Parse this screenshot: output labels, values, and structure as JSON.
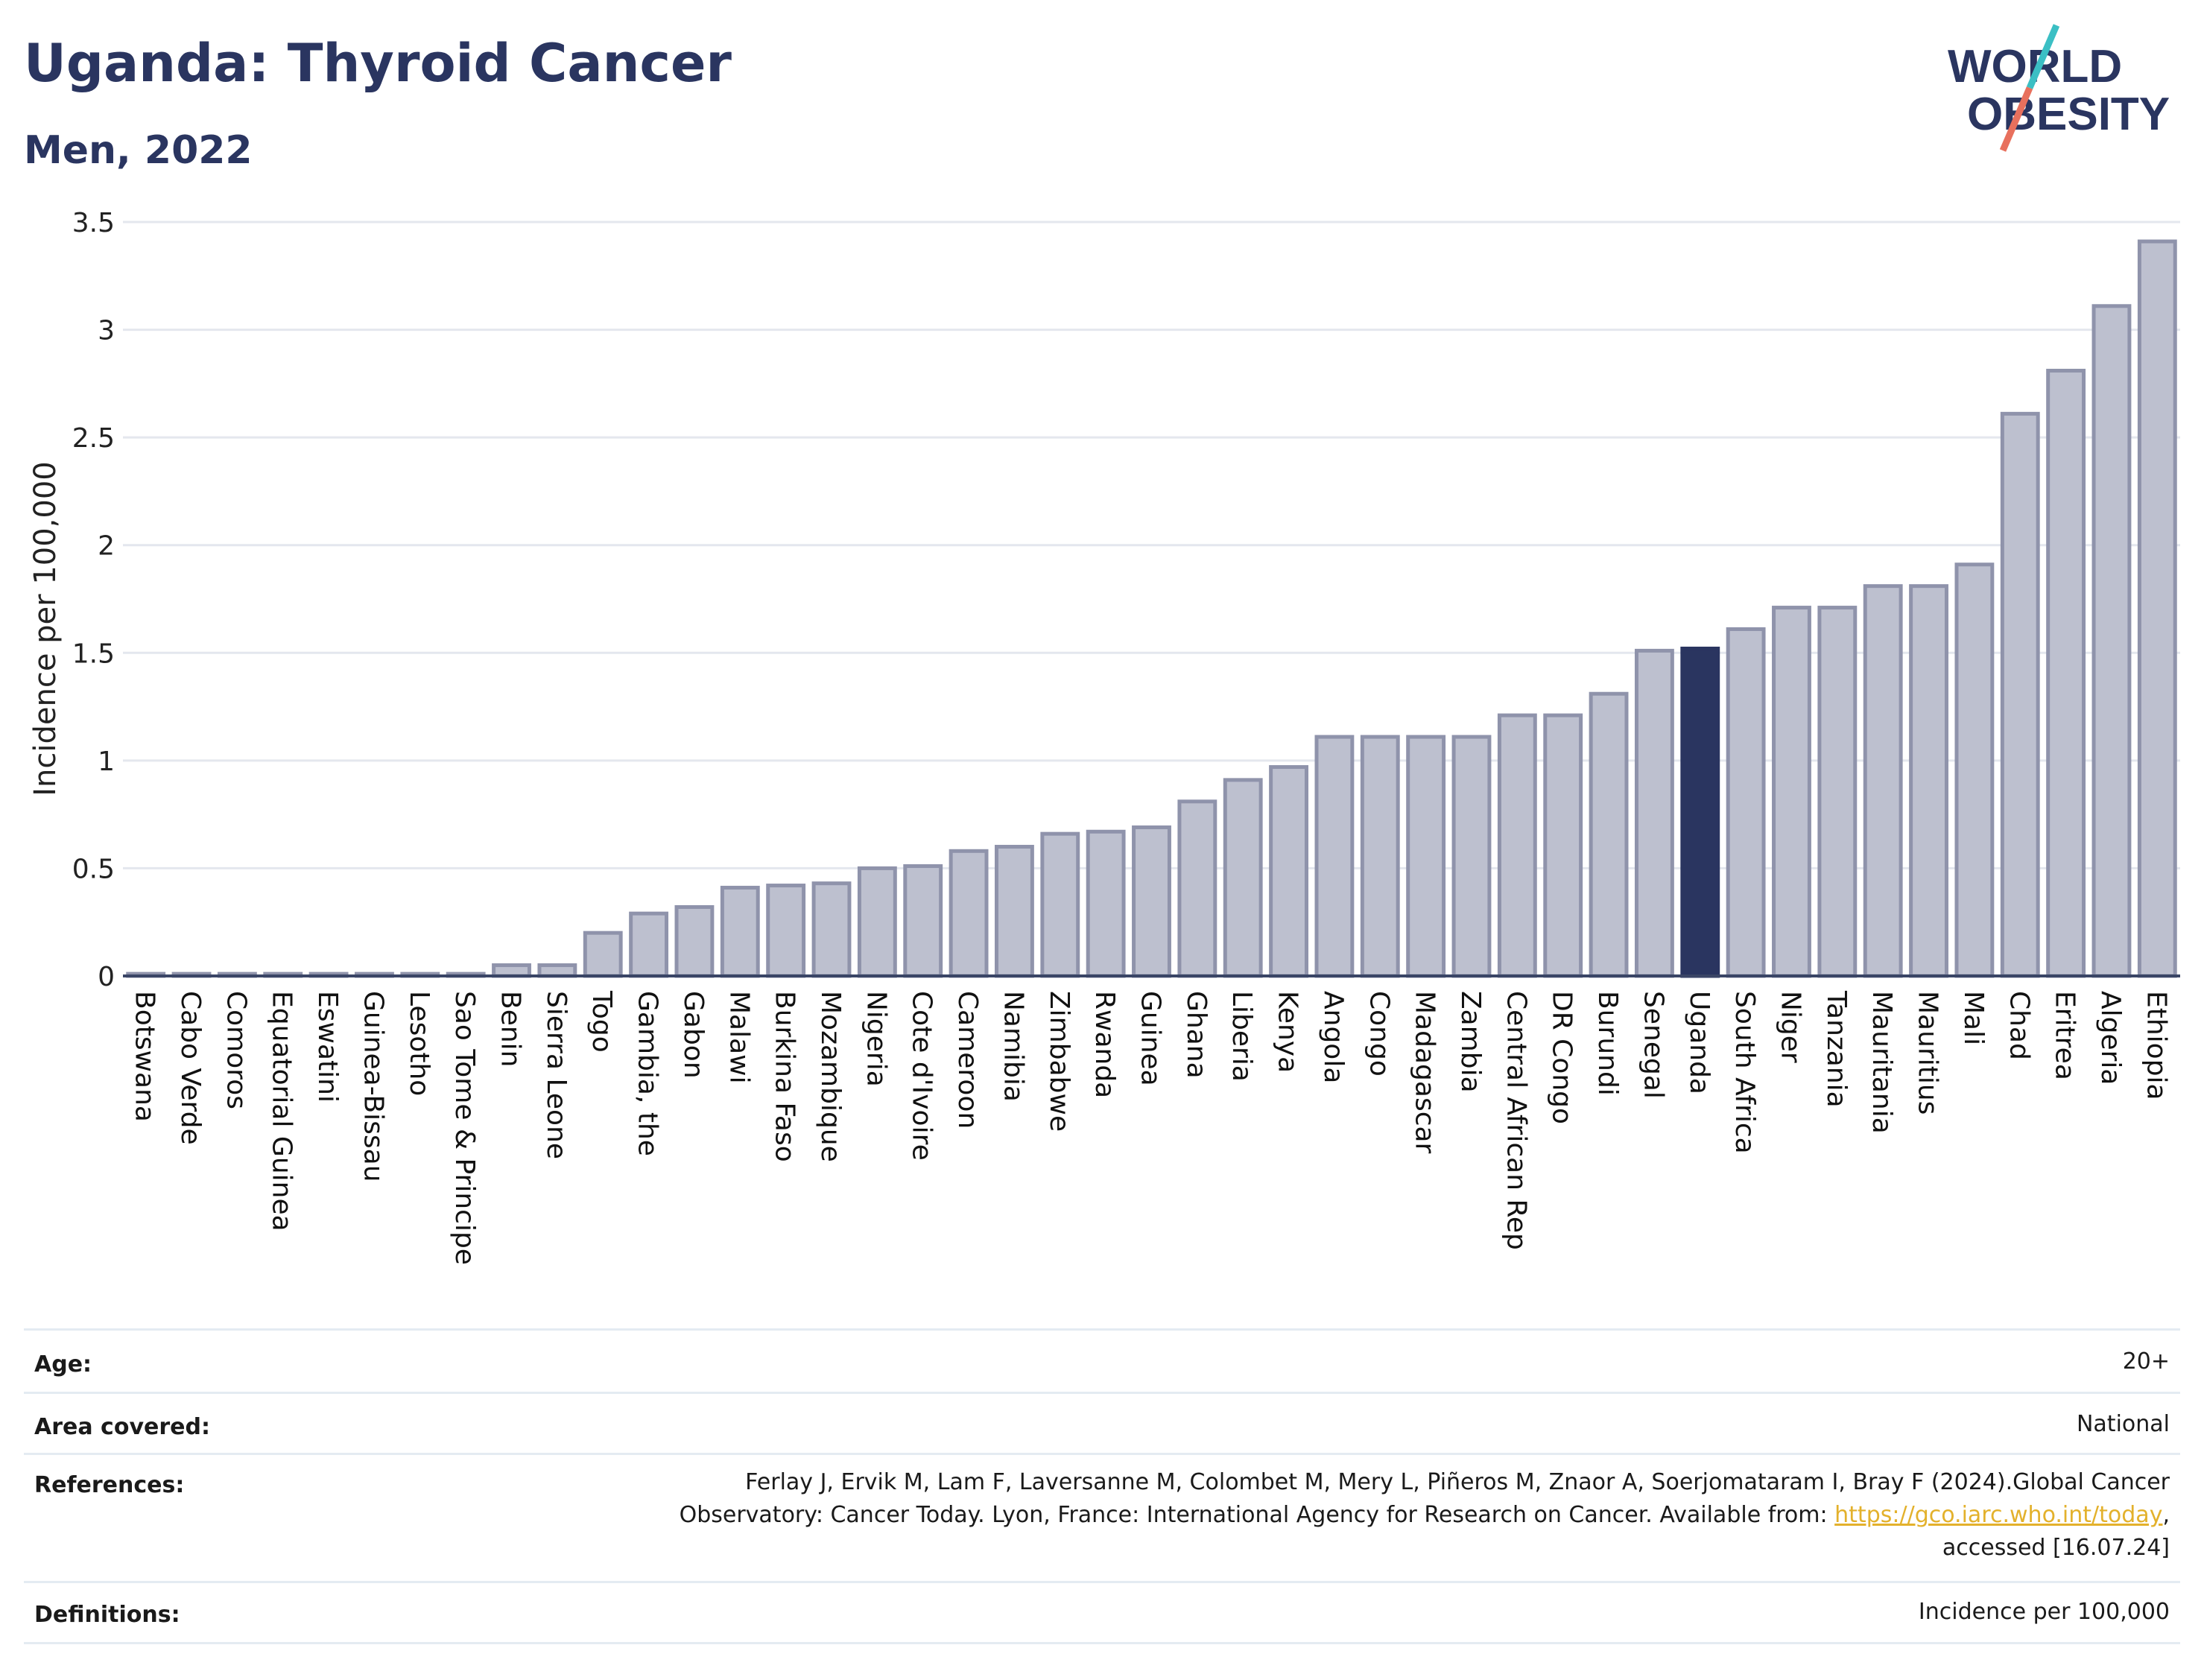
{
  "header": {
    "title": "Uganda: Thyroid Cancer",
    "subtitle": "Men, 2022"
  },
  "logo": {
    "line1": "WORLD",
    "line2": "OBESITY",
    "colors": {
      "text": "#2a3560",
      "slash_top": "#3bbfc4",
      "slash_bottom": "#e8705d"
    }
  },
  "chart_data": {
    "type": "bar",
    "ylabel": "Incidence per 100,000",
    "xlabel": "",
    "ylim": [
      0,
      3.5
    ],
    "yticks": [
      "0",
      "0.5",
      "1",
      "1.5",
      "2",
      "2.5",
      "3",
      "3.5"
    ],
    "highlight": "Uganda",
    "grid": true,
    "colors": {
      "bar": "#bdc0cf",
      "bar_border": "#8f93ab",
      "highlight": "#2a3560",
      "grid": "#e4e7ee"
    },
    "categories": [
      "Botswana",
      "Cabo Verde",
      "Comoros",
      "Equatorial Guinea",
      "Eswatini",
      "Guinea-Bissau",
      "Lesotho",
      "Sao Tome & Principe",
      "Benin",
      "Sierra Leone",
      "Togo",
      "Gambia, the",
      "Gabon",
      "Malawi",
      "Burkina Faso",
      "Mozambique",
      "Nigeria",
      "Cote d'Ivoire",
      "Cameroon",
      "Namibia",
      "Zimbabwe",
      "Rwanda",
      "Guinea",
      "Ghana",
      "Liberia",
      "Kenya",
      "Angola",
      "Congo",
      "Madagascar",
      "Zambia",
      "Central African Rep",
      "DR Congo",
      "Burundi",
      "Senegal",
      "Uganda",
      "South Africa",
      "Niger",
      "Tanzania",
      "Mauritania",
      "Mauritius",
      "Mali",
      "Chad",
      "Eritrea",
      "Algeria",
      "Ethiopia"
    ],
    "values": [
      0.01,
      0.01,
      0.01,
      0.01,
      0.01,
      0.01,
      0.01,
      0.01,
      0.05,
      0.05,
      0.2,
      0.29,
      0.32,
      0.41,
      0.42,
      0.43,
      0.5,
      0.51,
      0.58,
      0.6,
      0.66,
      0.67,
      0.69,
      0.81,
      0.91,
      0.97,
      1.11,
      1.11,
      1.11,
      1.11,
      1.21,
      1.21,
      1.31,
      1.51,
      1.52,
      1.61,
      1.71,
      1.71,
      1.81,
      1.81,
      1.91,
      2.61,
      2.81,
      3.11,
      3.41
    ]
  },
  "meta": [
    {
      "label": "Age:",
      "value": "20+"
    },
    {
      "label": "Area covered:",
      "value": "National"
    },
    {
      "label": "References:",
      "ref_line1": "Ferlay J, Ervik M, Lam F, Laversanne M, Colombet M, Mery L, Piñeros M, Znaor A, Soerjomataram I, Bray F (2024).Global Cancer",
      "ref_line2_pre": "Observatory: Cancer Today. Lyon, France: International Agency for Research on Cancer. Available from: ",
      "ref_link": "https://gco.iarc.who.int/today",
      "ref_line2_post": ",",
      "ref_line3": "accessed [16.07.24]"
    },
    {
      "label": "Definitions:",
      "value": "Incidence per 100,000"
    }
  ]
}
